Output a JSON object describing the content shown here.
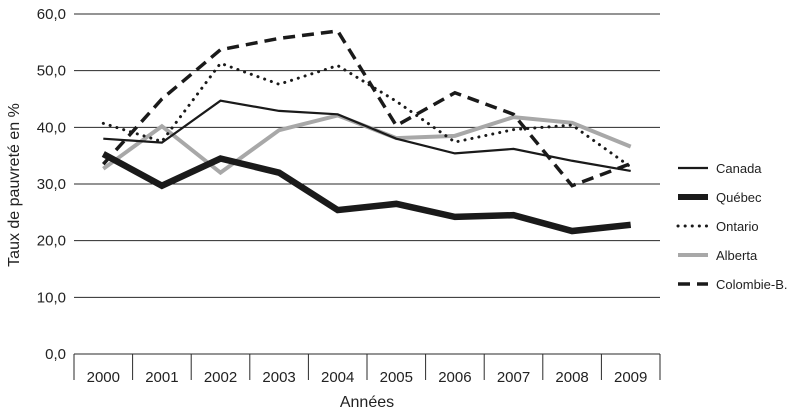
{
  "chart_data": {
    "type": "line",
    "title": "",
    "xlabel": "Années",
    "ylabel": "Taux de pauvreté en %",
    "x": [
      "2000",
      "2001",
      "2002",
      "2003",
      "2004",
      "2005",
      "2006",
      "2007",
      "2008",
      "2009"
    ],
    "ylim": [
      0,
      60
    ],
    "yticks": [
      "0,0",
      "10,0",
      "20,0",
      "30,0",
      "40,0",
      "50,0",
      "60,0"
    ],
    "grid": "horizontal",
    "legend": "right",
    "series": [
      {
        "name": "Canada",
        "values": [
          38.0,
          37.3,
          44.7,
          42.9,
          42.3,
          38.0,
          35.4,
          36.2,
          34.1,
          32.3
        ],
        "color": "#1a1a1a",
        "style": "solid-thin"
      },
      {
        "name": "Québec",
        "values": [
          35.3,
          29.7,
          34.5,
          32.0,
          25.4,
          26.5,
          24.2,
          24.5,
          21.7,
          22.8
        ],
        "color": "#1a1a1a",
        "style": "solid-thick"
      },
      {
        "name": "Ontario",
        "values": [
          40.7,
          37.5,
          51.3,
          47.6,
          50.9,
          44.6,
          37.4,
          39.6,
          40.4,
          33.0
        ],
        "color": "#1a1a1a",
        "style": "dotted"
      },
      {
        "name": "Alberta",
        "values": [
          32.7,
          40.2,
          32.0,
          39.5,
          42.1,
          38.1,
          38.5,
          41.8,
          40.8,
          36.6
        ],
        "color": "#a8a8a8",
        "style": "solid-grey"
      },
      {
        "name": "Colombie-B.",
        "values": [
          33.5,
          45.0,
          53.7,
          55.7,
          57.0,
          40.3,
          46.1,
          42.3,
          29.7,
          33.6
        ],
        "color": "#1a1a1a",
        "style": "dashed"
      }
    ]
  }
}
